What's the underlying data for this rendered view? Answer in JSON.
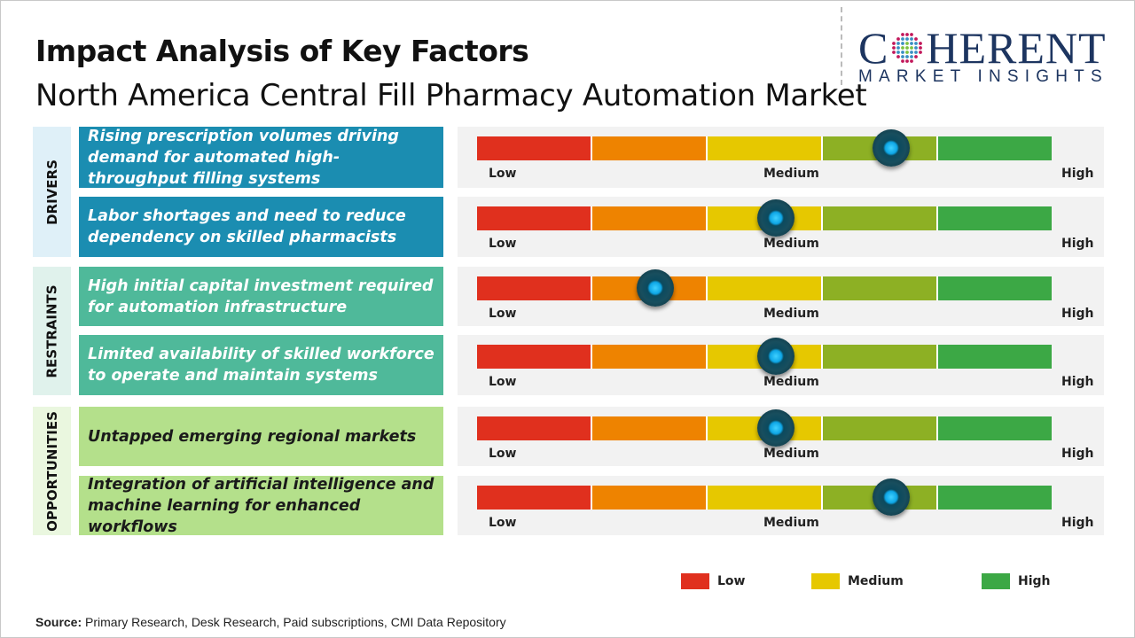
{
  "title": "Impact Analysis of Key Factors",
  "subtitle": "North America Central Fill Pharmacy Automation Market",
  "logo": {
    "main_left": "C",
    "main_right": "HERENT",
    "sub": "MARKET INSIGHTS"
  },
  "scale_labels": {
    "low": "Low",
    "medium": "Medium",
    "high": "High"
  },
  "scale_colors": [
    "#e0301e",
    "#ee8300",
    "#e6c800",
    "#8db024",
    "#3ca845"
  ],
  "categories": [
    {
      "label": "DRIVERS",
      "bg": "#dff0f8",
      "box": "#1b8db1",
      "text": "#ffffff",
      "factors": [
        {
          "text": "Rising prescription volumes driving demand for automated high-throughput filling systems",
          "impact_pct": 72
        },
        {
          "text": "Labor shortages and need to reduce dependency on skilled pharmacists",
          "impact_pct": 52
        }
      ]
    },
    {
      "label": "RESTRAINTS",
      "bg": "#e0f2ec",
      "box": "#4fb99a",
      "text": "#ffffff",
      "factors": [
        {
          "text": "High initial capital investment required for automation infrastructure",
          "impact_pct": 31
        },
        {
          "text": "Limited availability of skilled workforce to operate and maintain systems",
          "impact_pct": 52
        }
      ]
    },
    {
      "label": "OPPORTUNITIES",
      "bg": "#eaf7df",
      "box": "#b4e08b",
      "text": "#1a1a1a",
      "factors": [
        {
          "text": "Untapped emerging regional markets",
          "impact_pct": 52
        },
        {
          "text": "Integration of artificial intelligence and machine learning for enhanced workflows",
          "impact_pct": 72
        }
      ]
    }
  ],
  "legend": [
    {
      "label": "Low",
      "color": "#e0301e"
    },
    {
      "label": "Medium",
      "color": "#e6c800"
    },
    {
      "label": "High",
      "color": "#3ca845"
    }
  ],
  "source": {
    "label": "Source:",
    "text": " Primary Research, Desk Research, Paid subscriptions, CMI Data Repository"
  }
}
